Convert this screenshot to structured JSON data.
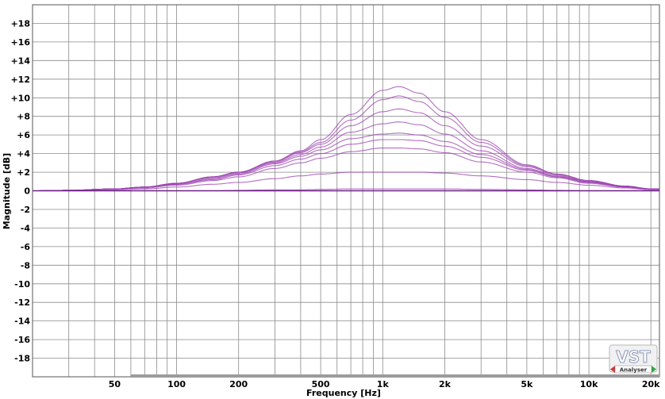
{
  "chart_data": {
    "type": "line",
    "xlabel": "Frequency [Hz]",
    "ylabel": "Magnitude [dB]",
    "xscale": "log",
    "xlim": [
      20,
      22000
    ],
    "ylim": [
      -20,
      20
    ],
    "grid": true,
    "legend": "none",
    "x_ticks": [
      {
        "value": 50,
        "label": "50"
      },
      {
        "value": 100,
        "label": "100"
      },
      {
        "value": 200,
        "label": "200"
      },
      {
        "value": 500,
        "label": "500"
      },
      {
        "value": 1000,
        "label": "1k"
      },
      {
        "value": 2000,
        "label": "2k"
      },
      {
        "value": 5000,
        "label": "5k"
      },
      {
        "value": 10000,
        "label": "10k"
      },
      {
        "value": 20000,
        "label": "20k"
      }
    ],
    "y_ticks": [
      {
        "value": 18,
        "label": "+18"
      },
      {
        "value": 16,
        "label": "+16"
      },
      {
        "value": 14,
        "label": "+14"
      },
      {
        "value": 12,
        "label": "+12"
      },
      {
        "value": 10,
        "label": "+10"
      },
      {
        "value": 8,
        "label": "+8"
      },
      {
        "value": 6,
        "label": "+6"
      },
      {
        "value": 4,
        "label": "+4"
      },
      {
        "value": 2,
        "label": "+2"
      },
      {
        "value": 0,
        "label": "0"
      },
      {
        "value": -2,
        "label": "-2"
      },
      {
        "value": -4,
        "label": "-4"
      },
      {
        "value": -6,
        "label": "-6"
      },
      {
        "value": -8,
        "label": "-8"
      },
      {
        "value": -10,
        "label": "-10"
      },
      {
        "value": -12,
        "label": "-12"
      },
      {
        "value": -14,
        "label": "-14"
      },
      {
        "value": -16,
        "label": "-16"
      },
      {
        "value": -18,
        "label": "-18"
      }
    ],
    "x": [
      20,
      30,
      50,
      70,
      100,
      150,
      200,
      300,
      400,
      500,
      700,
      1000,
      1200,
      1500,
      2000,
      3000,
      5000,
      7000,
      10000,
      15000,
      20000
    ],
    "series": [
      {
        "values": [
          0.0,
          0.05,
          0.2,
          0.4,
          0.8,
          1.5,
          2.0,
          3.2,
          4.3,
          5.5,
          8.2,
          10.8,
          11.2,
          10.5,
          8.5,
          5.5,
          2.8,
          1.8,
          1.1,
          0.5,
          0.2
        ]
      },
      {
        "values": [
          0.0,
          0.05,
          0.2,
          0.4,
          0.8,
          1.5,
          2.0,
          3.2,
          4.2,
          5.2,
          7.6,
          9.8,
          10.2,
          9.6,
          7.9,
          5.2,
          2.7,
          1.8,
          1.1,
          0.5,
          0.2
        ]
      },
      {
        "values": [
          0.0,
          0.05,
          0.2,
          0.4,
          0.8,
          1.5,
          2.0,
          3.1,
          4.1,
          5.0,
          7.0,
          8.5,
          8.8,
          8.4,
          7.0,
          4.8,
          2.6,
          1.7,
          1.0,
          0.5,
          0.2
        ]
      },
      {
        "values": [
          0.0,
          0.05,
          0.2,
          0.4,
          0.8,
          1.4,
          1.9,
          3.0,
          3.9,
          4.7,
          6.3,
          7.2,
          7.4,
          7.1,
          6.1,
          4.3,
          2.4,
          1.6,
          1.0,
          0.5,
          0.2
        ]
      },
      {
        "values": [
          0.0,
          0.05,
          0.2,
          0.4,
          0.7,
          1.3,
          1.8,
          2.9,
          3.7,
          4.4,
          5.6,
          6.1,
          6.2,
          6.0,
          5.3,
          3.9,
          2.3,
          1.5,
          0.9,
          0.4,
          0.2
        ]
      },
      {
        "values": [
          0.0,
          0.05,
          0.2,
          0.4,
          0.7,
          1.2,
          1.7,
          2.7,
          3.4,
          4.0,
          5.0,
          5.5,
          5.5,
          5.4,
          4.8,
          3.6,
          2.2,
          1.5,
          0.9,
          0.4,
          0.2
        ]
      },
      {
        "values": [
          0.0,
          0.05,
          0.2,
          0.3,
          0.6,
          1.1,
          1.5,
          2.4,
          3.0,
          3.5,
          4.2,
          4.6,
          4.6,
          4.5,
          4.1,
          3.1,
          2.0,
          1.4,
          0.8,
          0.4,
          0.2
        ]
      },
      {
        "values": [
          0.0,
          0.05,
          0.1,
          0.2,
          0.4,
          0.7,
          0.9,
          1.3,
          1.6,
          1.8,
          2.0,
          2.0,
          2.0,
          2.0,
          1.9,
          1.6,
          1.2,
          0.9,
          0.6,
          0.3,
          0.1
        ]
      },
      {
        "values": [
          0.0,
          0.0,
          0.0,
          0.0,
          0.0,
          0.0,
          0.05,
          0.1,
          0.1,
          0.15,
          0.2,
          0.2,
          0.2,
          0.2,
          0.2,
          0.15,
          0.1,
          0.05,
          0.0,
          0.0,
          0.0
        ]
      },
      {
        "values": [
          0.0,
          0.0,
          0.0,
          0.0,
          0.0,
          0.0,
          0.0,
          0.0,
          0.0,
          0.0,
          0.0,
          0.0,
          0.0,
          0.0,
          0.0,
          0.0,
          0.0,
          0.0,
          0.0,
          0.0,
          0.0
        ]
      }
    ],
    "colors": {
      "curve": "#9a3fae",
      "grid": "#8a8a8a",
      "frame": "#555555"
    }
  },
  "logo": {
    "text": "VST",
    "subtext": "Analyser"
  }
}
